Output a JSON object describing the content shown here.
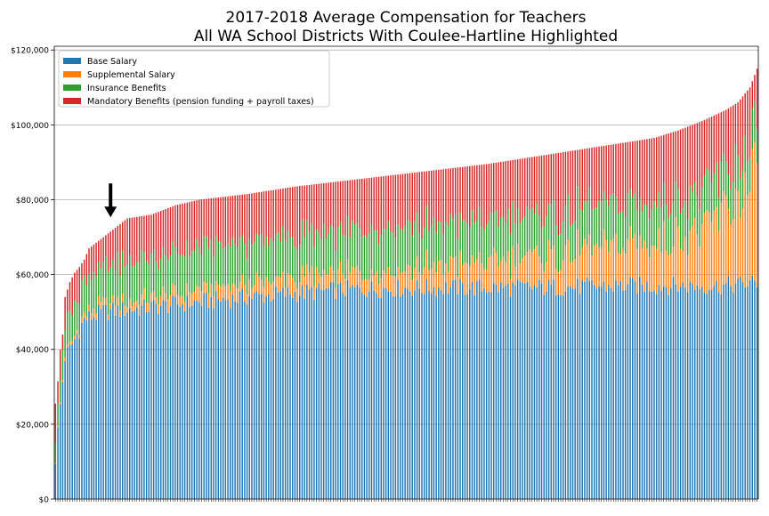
{
  "chart_data": {
    "type": "bar",
    "stacked": true,
    "title_lines": [
      "2017-2018 Average Compensation for Teachers",
      "All WA School Districts With Coulee-Hartline Highlighted"
    ],
    "xlabel": "",
    "ylabel": "",
    "ylim": [
      0,
      121000
    ],
    "y_ticks": [
      0,
      20000,
      40000,
      60000,
      80000,
      100000,
      120000
    ],
    "y_tick_labels": [
      "$0",
      "$20,000",
      "$40,000",
      "$60,000",
      "$80,000",
      "$100,000",
      "$120,000"
    ],
    "grid": "horizontal",
    "legend_position": "top-left",
    "district_count": 294,
    "highlighted_district_index": 23,
    "highlight_marker": "down-arrow",
    "series": [
      {
        "name": "Base Salary",
        "color": "#1f77b4"
      },
      {
        "name": "Supplemental Salary",
        "color": "#ff7f0e"
      },
      {
        "name": "Insurance Benefits",
        "color": "#2ca02c"
      },
      {
        "name": "Mandatory Benefits (pension funding + payroll taxes)",
        "color": "#d62728"
      }
    ],
    "total_curve": [
      [
        0,
        25500
      ],
      [
        1,
        31500
      ],
      [
        2,
        40000
      ],
      [
        3,
        44000
      ],
      [
        4,
        54000
      ],
      [
        5,
        56000
      ],
      [
        6,
        58000
      ],
      [
        8,
        60500
      ],
      [
        10,
        62000
      ],
      [
        12,
        64000
      ],
      [
        14,
        67000
      ],
      [
        16,
        68000
      ],
      [
        20,
        70000
      ],
      [
        23,
        71500
      ],
      [
        26,
        73000
      ],
      [
        30,
        75000
      ],
      [
        40,
        76000
      ],
      [
        50,
        78500
      ],
      [
        60,
        80000
      ],
      [
        80,
        81500
      ],
      [
        100,
        83500
      ],
      [
        120,
        85000
      ],
      [
        140,
        86500
      ],
      [
        160,
        88000
      ],
      [
        180,
        89500
      ],
      [
        200,
        91500
      ],
      [
        220,
        93500
      ],
      [
        240,
        95500
      ],
      [
        250,
        96500
      ],
      [
        260,
        98500
      ],
      [
        270,
        101000
      ],
      [
        280,
        104000
      ],
      [
        285,
        106000
      ],
      [
        290,
        110000
      ],
      [
        293,
        115000
      ]
    ],
    "base_curve": [
      [
        0,
        11000
      ],
      [
        2,
        25000
      ],
      [
        4,
        38000
      ],
      [
        6,
        40000
      ],
      [
        9,
        44000
      ],
      [
        12,
        48000
      ],
      [
        20,
        50000
      ],
      [
        50,
        52000
      ],
      [
        80,
        54000
      ],
      [
        120,
        56000
      ],
      [
        160,
        56500
      ],
      [
        200,
        56500
      ],
      [
        240,
        57000
      ],
      [
        280,
        57000
      ],
      [
        293,
        58000
      ]
    ],
    "supplemental_curve": [
      [
        0,
        500
      ],
      [
        10,
        1000
      ],
      [
        20,
        2000
      ],
      [
        40,
        2500
      ],
      [
        80,
        3500
      ],
      [
        120,
        4500
      ],
      [
        160,
        6000
      ],
      [
        200,
        8000
      ],
      [
        240,
        11000
      ],
      [
        270,
        15000
      ],
      [
        293,
        27000
      ]
    ],
    "insurance_curve": [
      [
        0,
        6000
      ],
      [
        4,
        7000
      ],
      [
        10,
        9000
      ],
      [
        20,
        10500
      ],
      [
        60,
        11000
      ],
      [
        120,
        11000
      ],
      [
        200,
        11000
      ],
      [
        250,
        11000
      ],
      [
        293,
        10000
      ]
    ]
  }
}
